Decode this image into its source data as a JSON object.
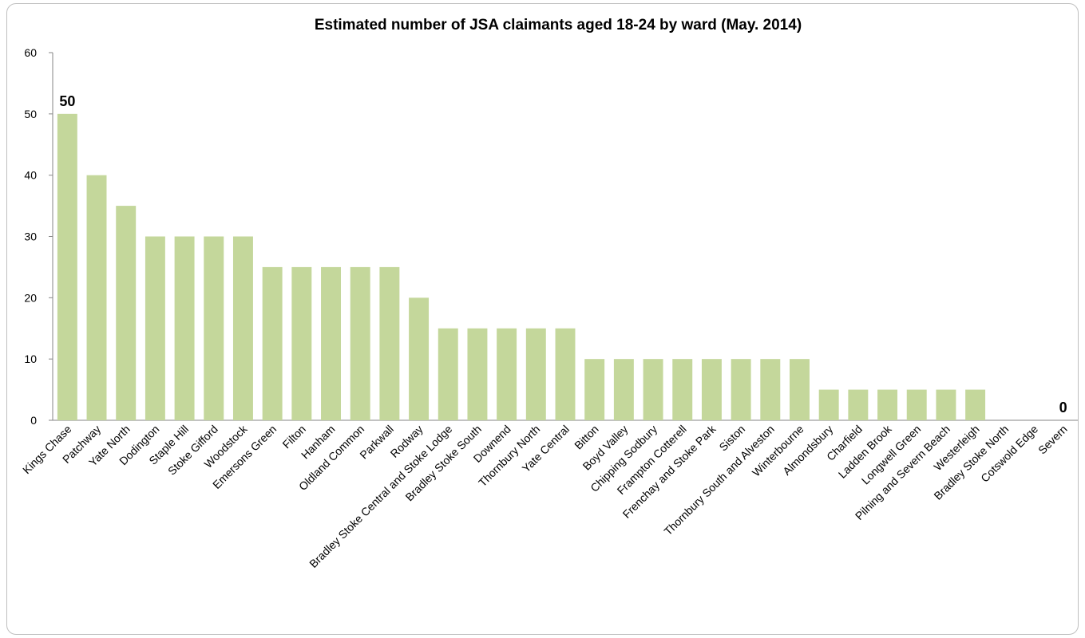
{
  "chart_data": {
    "type": "bar",
    "title": "Estimated number of JSA claimants aged 18-24 by ward (May. 2014)",
    "xlabel": "",
    "ylabel": "",
    "ylim": [
      0,
      60
    ],
    "yticks": [
      0,
      10,
      20,
      30,
      40,
      50,
      60
    ],
    "grid": false,
    "bar_color": "#c4d79b",
    "categories": [
      "Kings Chase",
      "Patchway",
      "Yate North",
      "Dodington",
      "Staple Hill",
      "Stoke Gifford",
      "Woodstock",
      "Emersons Green",
      "Filton",
      "Hanham",
      "Oldland Common",
      "Parkwall",
      "Rodway",
      "Bradley Stoke Central and Stoke Lodge",
      "Bradley Stoke South",
      "Downend",
      "Thornbury North",
      "Yate Central",
      "Bitton",
      "Boyd Valley",
      "Chipping Sodbury",
      "Frampton Cotterell",
      "Frenchay and Stoke Park",
      "Siston",
      "Thornbury South and Alveston",
      "Winterbourne",
      "Almondsbury",
      "Charfield",
      "Ladden Brook",
      "Longwell Green",
      "Pilning and Severn Beach",
      "Westerleigh",
      "Bradley Stoke North",
      "Cotswold Edge",
      "Severn"
    ],
    "values": [
      50,
      40,
      35,
      30,
      30,
      30,
      30,
      25,
      25,
      25,
      25,
      25,
      20,
      15,
      15,
      15,
      15,
      15,
      10,
      10,
      10,
      10,
      10,
      10,
      10,
      10,
      5,
      5,
      5,
      5,
      5,
      5,
      0,
      0,
      0
    ],
    "data_labels": [
      {
        "index": 0,
        "text": "50"
      },
      {
        "index": 34,
        "text": "0"
      }
    ]
  }
}
